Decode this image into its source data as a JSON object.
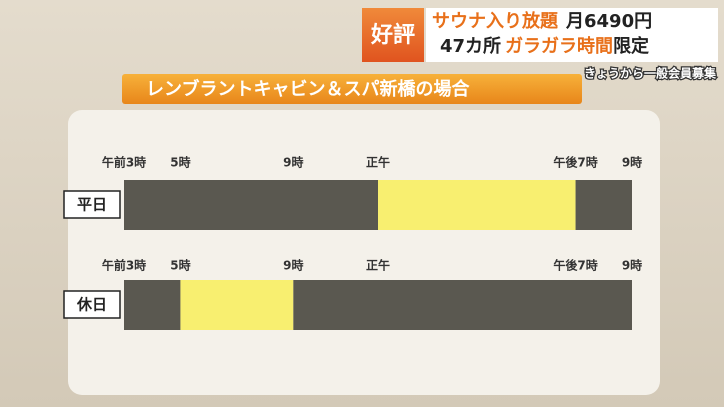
{
  "header": {
    "badge": "好評",
    "line1": [
      "サウナ入り放題",
      "月6490円"
    ],
    "line2": [
      "47カ所",
      "ガラガラ時間",
      "限定"
    ],
    "note": "きょうから一般会員募集"
  },
  "title": "レンブラントキャビン＆スパ新橋の場合",
  "timeline": {
    "xlim": [
      3,
      21
    ],
    "ticks": [
      {
        "value": 3,
        "label": "午前3時"
      },
      {
        "value": 5,
        "label": "5時"
      },
      {
        "value": 9,
        "label": "9時"
      },
      {
        "value": 12,
        "label": "正午"
      },
      {
        "value": 19,
        "label": "午後7時"
      },
      {
        "value": 21,
        "label": "9時"
      }
    ],
    "rows": [
      {
        "label": "平日",
        "segments": [
          {
            "start": 3,
            "end": 12,
            "color": "#5a5850"
          },
          {
            "start": 12,
            "end": 19,
            "color": "#f8ef70"
          },
          {
            "start": 19,
            "end": 21,
            "color": "#5a5850"
          }
        ]
      },
      {
        "label": "休日",
        "segments": [
          {
            "start": 3,
            "end": 5,
            "color": "#5a5850"
          },
          {
            "start": 5,
            "end": 9,
            "color": "#f8ef70"
          },
          {
            "start": 9,
            "end": 21,
            "color": "#5a5850"
          }
        ]
      }
    ]
  }
}
